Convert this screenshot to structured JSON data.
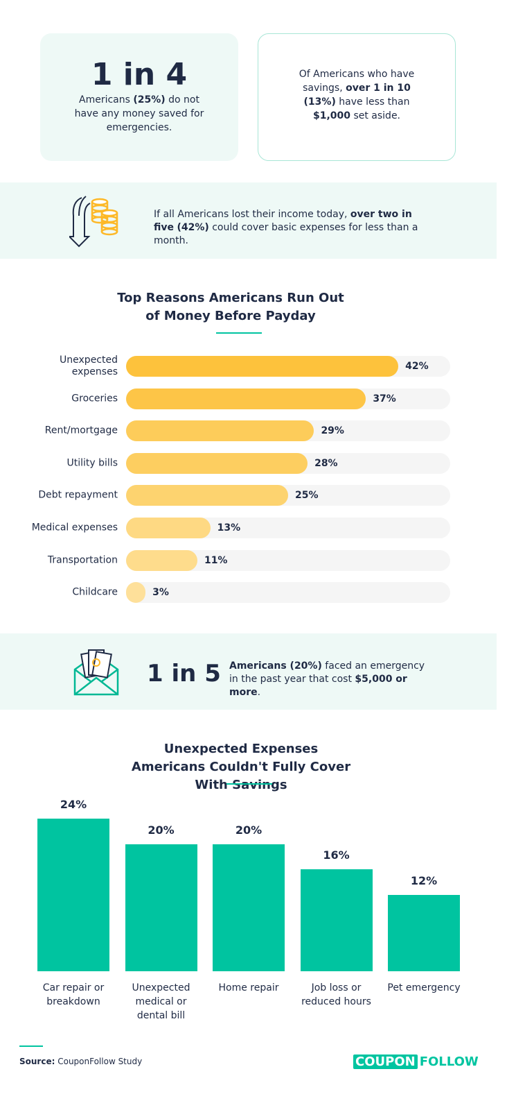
{
  "stats": [
    {
      "headline": "1 in 4",
      "text": [
        {
          "text": "Americans ",
          "bold": false
        },
        {
          "text": "(25%)",
          "bold": true
        },
        {
          "text": " do not have any money saved for emergencies.",
          "bold": false
        }
      ]
    },
    {
      "text": [
        {
          "text": "Of Americans who have savings, ",
          "bold": false
        },
        {
          "text": "over 1 in 10",
          "bold": true
        },
        {
          "text": " ",
          "bold": false
        },
        {
          "text": "(13%)",
          "bold": true
        },
        {
          "text": " have less than ",
          "bold": false
        },
        {
          "text": "$1,000",
          "bold": true
        },
        {
          "text": " set aside.",
          "bold": false
        }
      ]
    }
  ],
  "banners": [
    {
      "text": [
        {
          "text": "If all Americans lost their income today, ",
          "bold": false
        },
        {
          "text": "over two in five",
          "bold": true
        },
        {
          "text": " ",
          "bold": false
        },
        {
          "text": "(42%)",
          "bold": true
        },
        {
          "text": " could cover basic expenses for less than a month.",
          "bold": false
        }
      ]
    },
    {
      "headline": "1 in 5",
      "text": [
        {
          "text": "Americans (20%)",
          "bold": true
        },
        {
          "text": " faced an emergency in the past year that cost ",
          "bold": false
        },
        {
          "text": "$5,000 or more",
          "bold": true
        },
        {
          "text": ".",
          "bold": false
        }
      ]
    }
  ],
  "chart_data": [
    {
      "type": "bar",
      "orientation": "horizontal",
      "title": "Top Reasons Americans Run Out of Money Before Payday",
      "categories": [
        "Unexpected expenses",
        "Groceries",
        "Rent/mortgage",
        "Utility bills",
        "Debt repayment",
        "Medical expenses",
        "Transportation",
        "Childcare"
      ],
      "values": [
        42,
        37,
        29,
        28,
        25,
        13,
        11,
        3
      ],
      "value_labels": [
        "42%",
        "37%",
        "29%",
        "28%",
        "25%",
        "13%",
        "11%",
        "3%"
      ],
      "colors": [
        "#fdc23c",
        "#fdc547",
        "#fdcc5a",
        "#fdce60",
        "#fdd36f",
        "#fed983",
        "#fedc8c",
        "#fee09a"
      ],
      "xlim": [
        0,
        50
      ]
    },
    {
      "type": "bar",
      "title": "Unexpected Expenses Americans Couldn't Fully Cover With Savings",
      "categories": [
        "Car repair or breakdown",
        "Unexpected medical or dental bill",
        "Home repair",
        "Job loss or reduced hours",
        "Pet emergency"
      ],
      "values": [
        24,
        20,
        20,
        16,
        12
      ],
      "value_labels": [
        "24%",
        "20%",
        "20%",
        "16%",
        "12%"
      ],
      "color": "#00c4a0",
      "ylim": [
        0,
        24
      ]
    }
  ],
  "source": [
    {
      "text": "Source:",
      "bold": true
    },
    {
      "text": " CouponFollow Study",
      "bold": false
    }
  ],
  "logo": [
    "COUPON",
    "FOLLOW"
  ]
}
